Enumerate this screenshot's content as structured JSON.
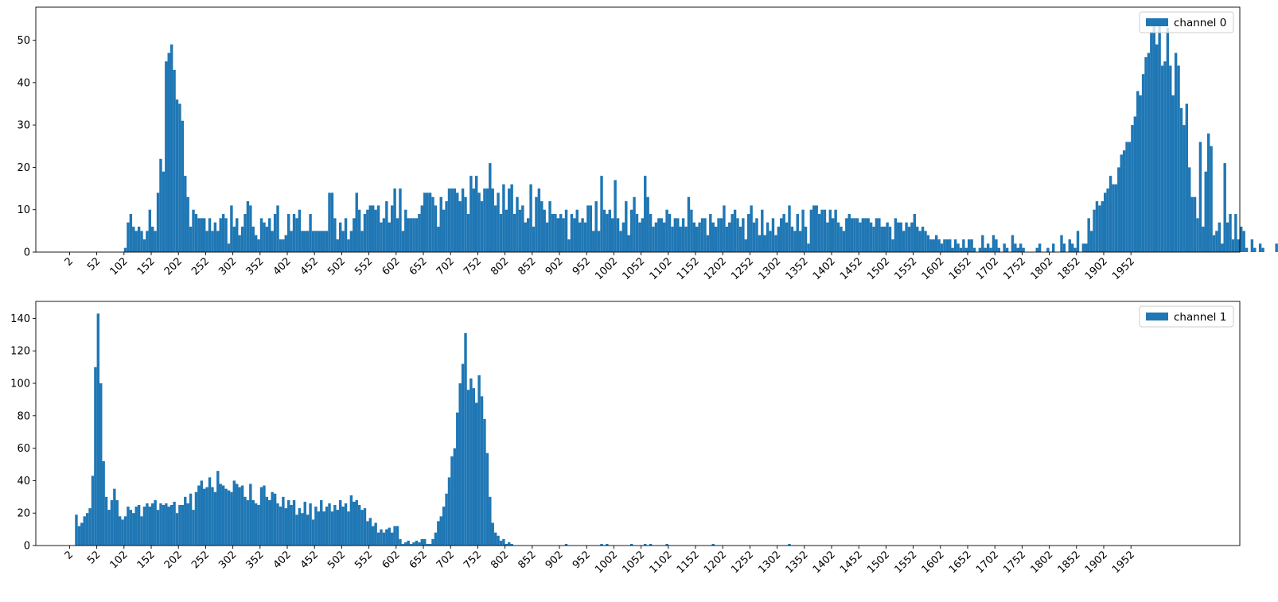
{
  "chart_data": [
    {
      "type": "bar",
      "legend": {
        "label": "channel 0",
        "placement": "top-right"
      },
      "color": "#1f77b4",
      "xlim": [
        -60,
        2152
      ],
      "ylim": [
        0,
        57.8
      ],
      "xticks": [
        2,
        52,
        102,
        152,
        202,
        252,
        302,
        352,
        402,
        452,
        502,
        552,
        602,
        652,
        702,
        752,
        802,
        852,
        902,
        952,
        1002,
        1052,
        1102,
        1152,
        1202,
        1252,
        1302,
        1352,
        1402,
        1452,
        1502,
        1552,
        1602,
        1652,
        1702,
        1752,
        1802,
        1852,
        1902,
        1952
      ],
      "yticks": [
        0,
        10,
        20,
        30,
        40,
        50
      ],
      "bin_start": 102,
      "bin_width": 5,
      "values": [
        1,
        7,
        9,
        6,
        5,
        6,
        5,
        3,
        5,
        10,
        6,
        5,
        14,
        22,
        19,
        45,
        47,
        49,
        43,
        36,
        35,
        31,
        18,
        13,
        6,
        10,
        9,
        8,
        8,
        8,
        5,
        8,
        5,
        7,
        5,
        8,
        9,
        8,
        2,
        11,
        6,
        8,
        4,
        6,
        9,
        12,
        11,
        6,
        4,
        3,
        8,
        7,
        6,
        8,
        5,
        9,
        11,
        3,
        3,
        4,
        9,
        5,
        9,
        8,
        10,
        5,
        5,
        5,
        9,
        5,
        5,
        5,
        5,
        5,
        5,
        14,
        14,
        8,
        3,
        7,
        5,
        8,
        3,
        5,
        8,
        14,
        10,
        5,
        9,
        10,
        11,
        11,
        10,
        11,
        7,
        8,
        12,
        7,
        11,
        15,
        8,
        15,
        5,
        10,
        8,
        8,
        8,
        8,
        9,
        11,
        14,
        14,
        14,
        13,
        11,
        6,
        13,
        10,
        12,
        15,
        15,
        15,
        14,
        12,
        15,
        13,
        9,
        18,
        15,
        18,
        14,
        12,
        15,
        15,
        21,
        15,
        11,
        14,
        9,
        16,
        10,
        15,
        16,
        9,
        13,
        10,
        11,
        7,
        8,
        16,
        6,
        13,
        15,
        12,
        10,
        7,
        12,
        9,
        9,
        8,
        9,
        8,
        10,
        3,
        9,
        8,
        10,
        7,
        8,
        7,
        11,
        11,
        5,
        12,
        5,
        18,
        10,
        9,
        10,
        8,
        17,
        8,
        5,
        7,
        12,
        4,
        10,
        13,
        9,
        7,
        8,
        18,
        13,
        9,
        6,
        7,
        8,
        8,
        7,
        10,
        9,
        6,
        8,
        8,
        6,
        8,
        6,
        13,
        10,
        7,
        6,
        7,
        8,
        8,
        4,
        9,
        7,
        6,
        8,
        8,
        11,
        6,
        7,
        9,
        10,
        8,
        6,
        8,
        3,
        9,
        11,
        7,
        8,
        4,
        10,
        4,
        7,
        5,
        8,
        4,
        6,
        8,
        9,
        7,
        11,
        6,
        5,
        9,
        5,
        10,
        6,
        2,
        10,
        11,
        11,
        9,
        10,
        10,
        7,
        10,
        8,
        10,
        7,
        6,
        5,
        8,
        9,
        8,
        8,
        8,
        7,
        8,
        8,
        8,
        7,
        6,
        8,
        8,
        6,
        6,
        7,
        6,
        3,
        8,
        7,
        7,
        5,
        7,
        6,
        7,
        9,
        6,
        5,
        6,
        5,
        4,
        3,
        3,
        4,
        3,
        2,
        3,
        3,
        3,
        1,
        3,
        2,
        1,
        3,
        1,
        3,
        3,
        1,
        0,
        1,
        4,
        1,
        2,
        1,
        4,
        3,
        1,
        0,
        2,
        1,
        0,
        4,
        2,
        1,
        2,
        1,
        0,
        0,
        0,
        0,
        1,
        2,
        0,
        0,
        1,
        0,
        2,
        0,
        0,
        4,
        2,
        0,
        3,
        2,
        1,
        5,
        0,
        2,
        2,
        8,
        5,
        10,
        12,
        11,
        12,
        14,
        15,
        18,
        16,
        16,
        20,
        23,
        24,
        26,
        26,
        30,
        32,
        38,
        37,
        42,
        46,
        47,
        52,
        55,
        49,
        55,
        44,
        45,
        53,
        44,
        37,
        47,
        44,
        34,
        30,
        35,
        20,
        13,
        13,
        8,
        26,
        6,
        19,
        28,
        25,
        4,
        5,
        7,
        2,
        21,
        7,
        9,
        3,
        9,
        3,
        6,
        5,
        1,
        0,
        3,
        1,
        0,
        2,
        1,
        0,
        0,
        0,
        0,
        2,
        0,
        0,
        0,
        0,
        0,
        1,
        0,
        0,
        0,
        0,
        0,
        0,
        0,
        0,
        0,
        0,
        0,
        0,
        0,
        0,
        0,
        0,
        0,
        0,
        0,
        0,
        0,
        0,
        0,
        0,
        0,
        0,
        0,
        0,
        1,
        0,
        0,
        0,
        0,
        0,
        0,
        0,
        0,
        0,
        0,
        0,
        0,
        0,
        0,
        0,
        0,
        0,
        0,
        0,
        0,
        0,
        0,
        0,
        0,
        0,
        1,
        0,
        0,
        0,
        1,
        1,
        0,
        0,
        0,
        0,
        0,
        0,
        1,
        0,
        1,
        0,
        0,
        0,
        0,
        0,
        0,
        1,
        0,
        0,
        0,
        0,
        1,
        0,
        0,
        0,
        0,
        1,
        0,
        0,
        0,
        0,
        0,
        0,
        0,
        0,
        0,
        0,
        0,
        0,
        0,
        0,
        0,
        0,
        0,
        0,
        0,
        0,
        0,
        0,
        0,
        0,
        0,
        0,
        0,
        0,
        0,
        0,
        0,
        0,
        0,
        0,
        0,
        0,
        0,
        0,
        0,
        0,
        0,
        0,
        0,
        0,
        0,
        0,
        0,
        0,
        0,
        0,
        0,
        0,
        0,
        0,
        0,
        1
      ]
    },
    {
      "type": "bar",
      "legend": {
        "label": "channel 1",
        "placement": "top-right"
      },
      "color": "#1f77b4",
      "xlim": [
        -60,
        2152
      ],
      "ylim": [
        0,
        150.5
      ],
      "xticks": [
        2,
        52,
        102,
        152,
        202,
        252,
        302,
        352,
        402,
        452,
        502,
        552,
        602,
        652,
        702,
        752,
        802,
        852,
        902,
        952,
        1002,
        1052,
        1102,
        1152,
        1202,
        1252,
        1302,
        1352,
        1402,
        1452,
        1502,
        1552,
        1602,
        1652,
        1702,
        1752,
        1802,
        1852,
        1902,
        1952
      ],
      "yticks": [
        0,
        20,
        40,
        60,
        80,
        100,
        120,
        140
      ],
      "bin_start": 12,
      "bin_width": 5,
      "values": [
        19,
        12,
        14,
        18,
        20,
        23,
        43,
        110,
        143,
        100,
        52,
        30,
        22,
        28,
        35,
        28,
        18,
        16,
        18,
        24,
        22,
        20,
        24,
        25,
        18,
        24,
        26,
        24,
        26,
        28,
        22,
        26,
        25,
        26,
        24,
        25,
        27,
        20,
        25,
        25,
        30,
        26,
        32,
        22,
        33,
        37,
        40,
        35,
        36,
        42,
        36,
        33,
        46,
        38,
        37,
        35,
        34,
        33,
        40,
        38,
        36,
        37,
        30,
        28,
        38,
        28,
        26,
        25,
        36,
        37,
        30,
        28,
        33,
        32,
        26,
        24,
        30,
        23,
        28,
        25,
        28,
        19,
        23,
        20,
        27,
        19,
        26,
        16,
        24,
        21,
        28,
        21,
        24,
        26,
        21,
        25,
        22,
        28,
        24,
        26,
        21,
        31,
        27,
        28,
        25,
        22,
        23,
        15,
        17,
        12,
        14,
        8,
        10,
        8,
        10,
        11,
        8,
        12,
        12,
        4,
        1,
        2,
        3,
        1,
        2,
        3,
        2,
        4,
        4,
        1,
        1,
        4,
        8,
        15,
        18,
        24,
        32,
        42,
        55,
        60,
        82,
        100,
        112,
        131,
        96,
        103,
        97,
        88,
        105,
        92,
        78,
        57,
        30,
        14,
        8,
        6,
        3,
        4,
        1,
        2,
        1,
        0,
        0,
        0,
        0,
        0,
        0,
        0,
        0,
        0,
        0,
        0,
        0,
        0,
        0,
        0,
        0,
        0,
        0,
        0,
        1,
        0,
        0,
        0,
        0,
        0,
        0,
        0,
        0,
        0,
        0,
        0,
        0,
        1,
        0,
        1,
        0,
        0,
        0,
        0,
        0,
        0,
        0,
        0,
        1,
        0,
        0,
        0,
        0,
        1,
        0,
        1,
        0,
        0,
        0,
        0,
        0,
        1,
        0,
        0,
        0,
        0,
        0,
        0,
        0,
        0,
        0,
        0,
        0,
        0,
        0,
        0,
        0,
        0,
        1,
        0,
        0,
        0,
        0,
        0,
        0,
        0,
        0,
        0,
        0,
        0,
        0,
        0,
        0,
        0,
        0,
        0,
        0,
        0,
        0,
        0,
        0,
        0,
        0,
        0,
        0,
        0,
        1
      ]
    }
  ]
}
